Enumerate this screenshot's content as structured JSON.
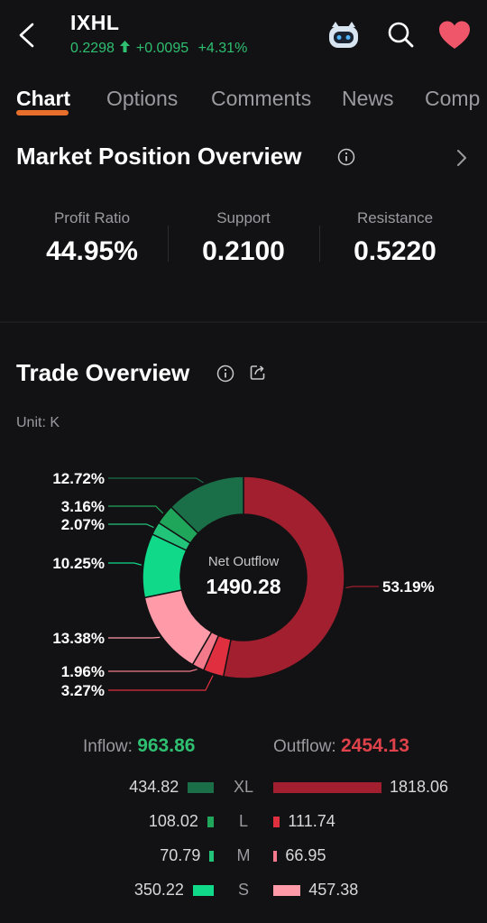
{
  "header": {
    "ticker": "IXHL",
    "price": "0.2298",
    "change": "+0.0095",
    "change_pct": "+4.31%",
    "icons": [
      "back-icon",
      "robot-icon",
      "search-icon",
      "heart-icon"
    ]
  },
  "tabs": [
    {
      "label": "Chart",
      "active": true
    },
    {
      "label": "Options"
    },
    {
      "label": "Comments"
    },
    {
      "label": "News"
    },
    {
      "label": "Comp"
    }
  ],
  "market_position": {
    "title": "Market Position Overview",
    "stats": [
      {
        "label": "Profit Ratio",
        "value": "44.95%"
      },
      {
        "label": "Support",
        "value": "0.2100"
      },
      {
        "label": "Resistance",
        "value": "0.5220"
      }
    ]
  },
  "trade_overview": {
    "title": "Trade Overview",
    "unit": "Unit: K",
    "center_label": "Net Outflow",
    "center_value": "1490.28",
    "inflow_label": "Inflow:",
    "inflow_value": "963.86",
    "outflow_label": "Outflow:",
    "outflow_value": "2454.13"
  },
  "chart_data": {
    "type": "pie",
    "slices": [
      {
        "name": "Outflow XL",
        "value": 53.19,
        "label": "53.19%",
        "color": "#a11f2e"
      },
      {
        "name": "Outflow L",
        "value": 3.27,
        "label": "3.27%",
        "color": "#e0303f"
      },
      {
        "name": "Outflow M",
        "value": 1.96,
        "label": "1.96%",
        "color": "#f27a8a"
      },
      {
        "name": "Outflow S",
        "value": 13.38,
        "label": "13.38%",
        "color": "#ff9aa8"
      },
      {
        "name": "Inflow S",
        "value": 10.25,
        "label": "10.25%",
        "color": "#10d98a"
      },
      {
        "name": "Inflow M",
        "value": 2.07,
        "label": "2.07%",
        "color": "#22c47a"
      },
      {
        "name": "Inflow L",
        "value": 3.16,
        "label": "3.16%",
        "color": "#1fa65a"
      },
      {
        "name": "Inflow XL",
        "value": 12.72,
        "label": "12.72%",
        "color": "#1a6e48"
      }
    ],
    "rows": [
      {
        "class": "XL",
        "inflow": 434.82,
        "outflow": 1818.06
      },
      {
        "class": "L",
        "inflow": 108.02,
        "outflow": 111.74
      },
      {
        "class": "M",
        "inflow": 70.79,
        "outflow": 66.95
      },
      {
        "class": "S",
        "inflow": 350.22,
        "outflow": 457.38
      }
    ],
    "inflow_colors": [
      "#1a6e48",
      "#1fa65a",
      "#22c47a",
      "#10d98a"
    ],
    "outflow_colors": [
      "#a11f2e",
      "#e0303f",
      "#f27a8a",
      "#ff9aa8"
    ]
  }
}
